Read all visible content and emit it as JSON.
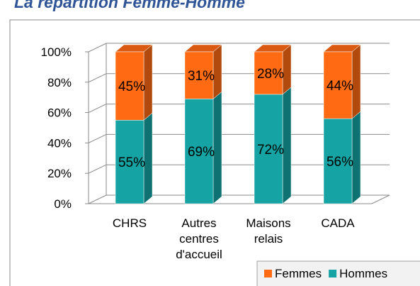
{
  "chart_data": {
    "type": "bar3d_stacked",
    "title": "La répartition Femme-Homme",
    "categories": [
      "CHRS",
      "Autres centres d'accueil",
      "Maisons relais",
      "CADA"
    ],
    "series": [
      {
        "name": "Femmes",
        "color": "#ff6a13",
        "values": [
          45,
          31,
          28,
          44
        ],
        "value_labels": [
          "45%",
          "31%",
          "28%",
          "44%"
        ]
      },
      {
        "name": "Hommes",
        "color": "#16a3a3",
        "values": [
          55,
          69,
          72,
          56
        ],
        "value_labels": [
          "55%",
          "69%",
          "72%",
          "56%"
        ]
      }
    ],
    "ylim": [
      0,
      100
    ],
    "yticks": [
      {
        "value": 0,
        "label": "0%"
      },
      {
        "value": 20,
        "label": "20%"
      },
      {
        "value": 40,
        "label": "40%"
      },
      {
        "value": 60,
        "label": "60%"
      },
      {
        "value": 80,
        "label": "80%"
      },
      {
        "value": 100,
        "label": "100%"
      }
    ],
    "grid": true,
    "legend": "bottom-right"
  }
}
